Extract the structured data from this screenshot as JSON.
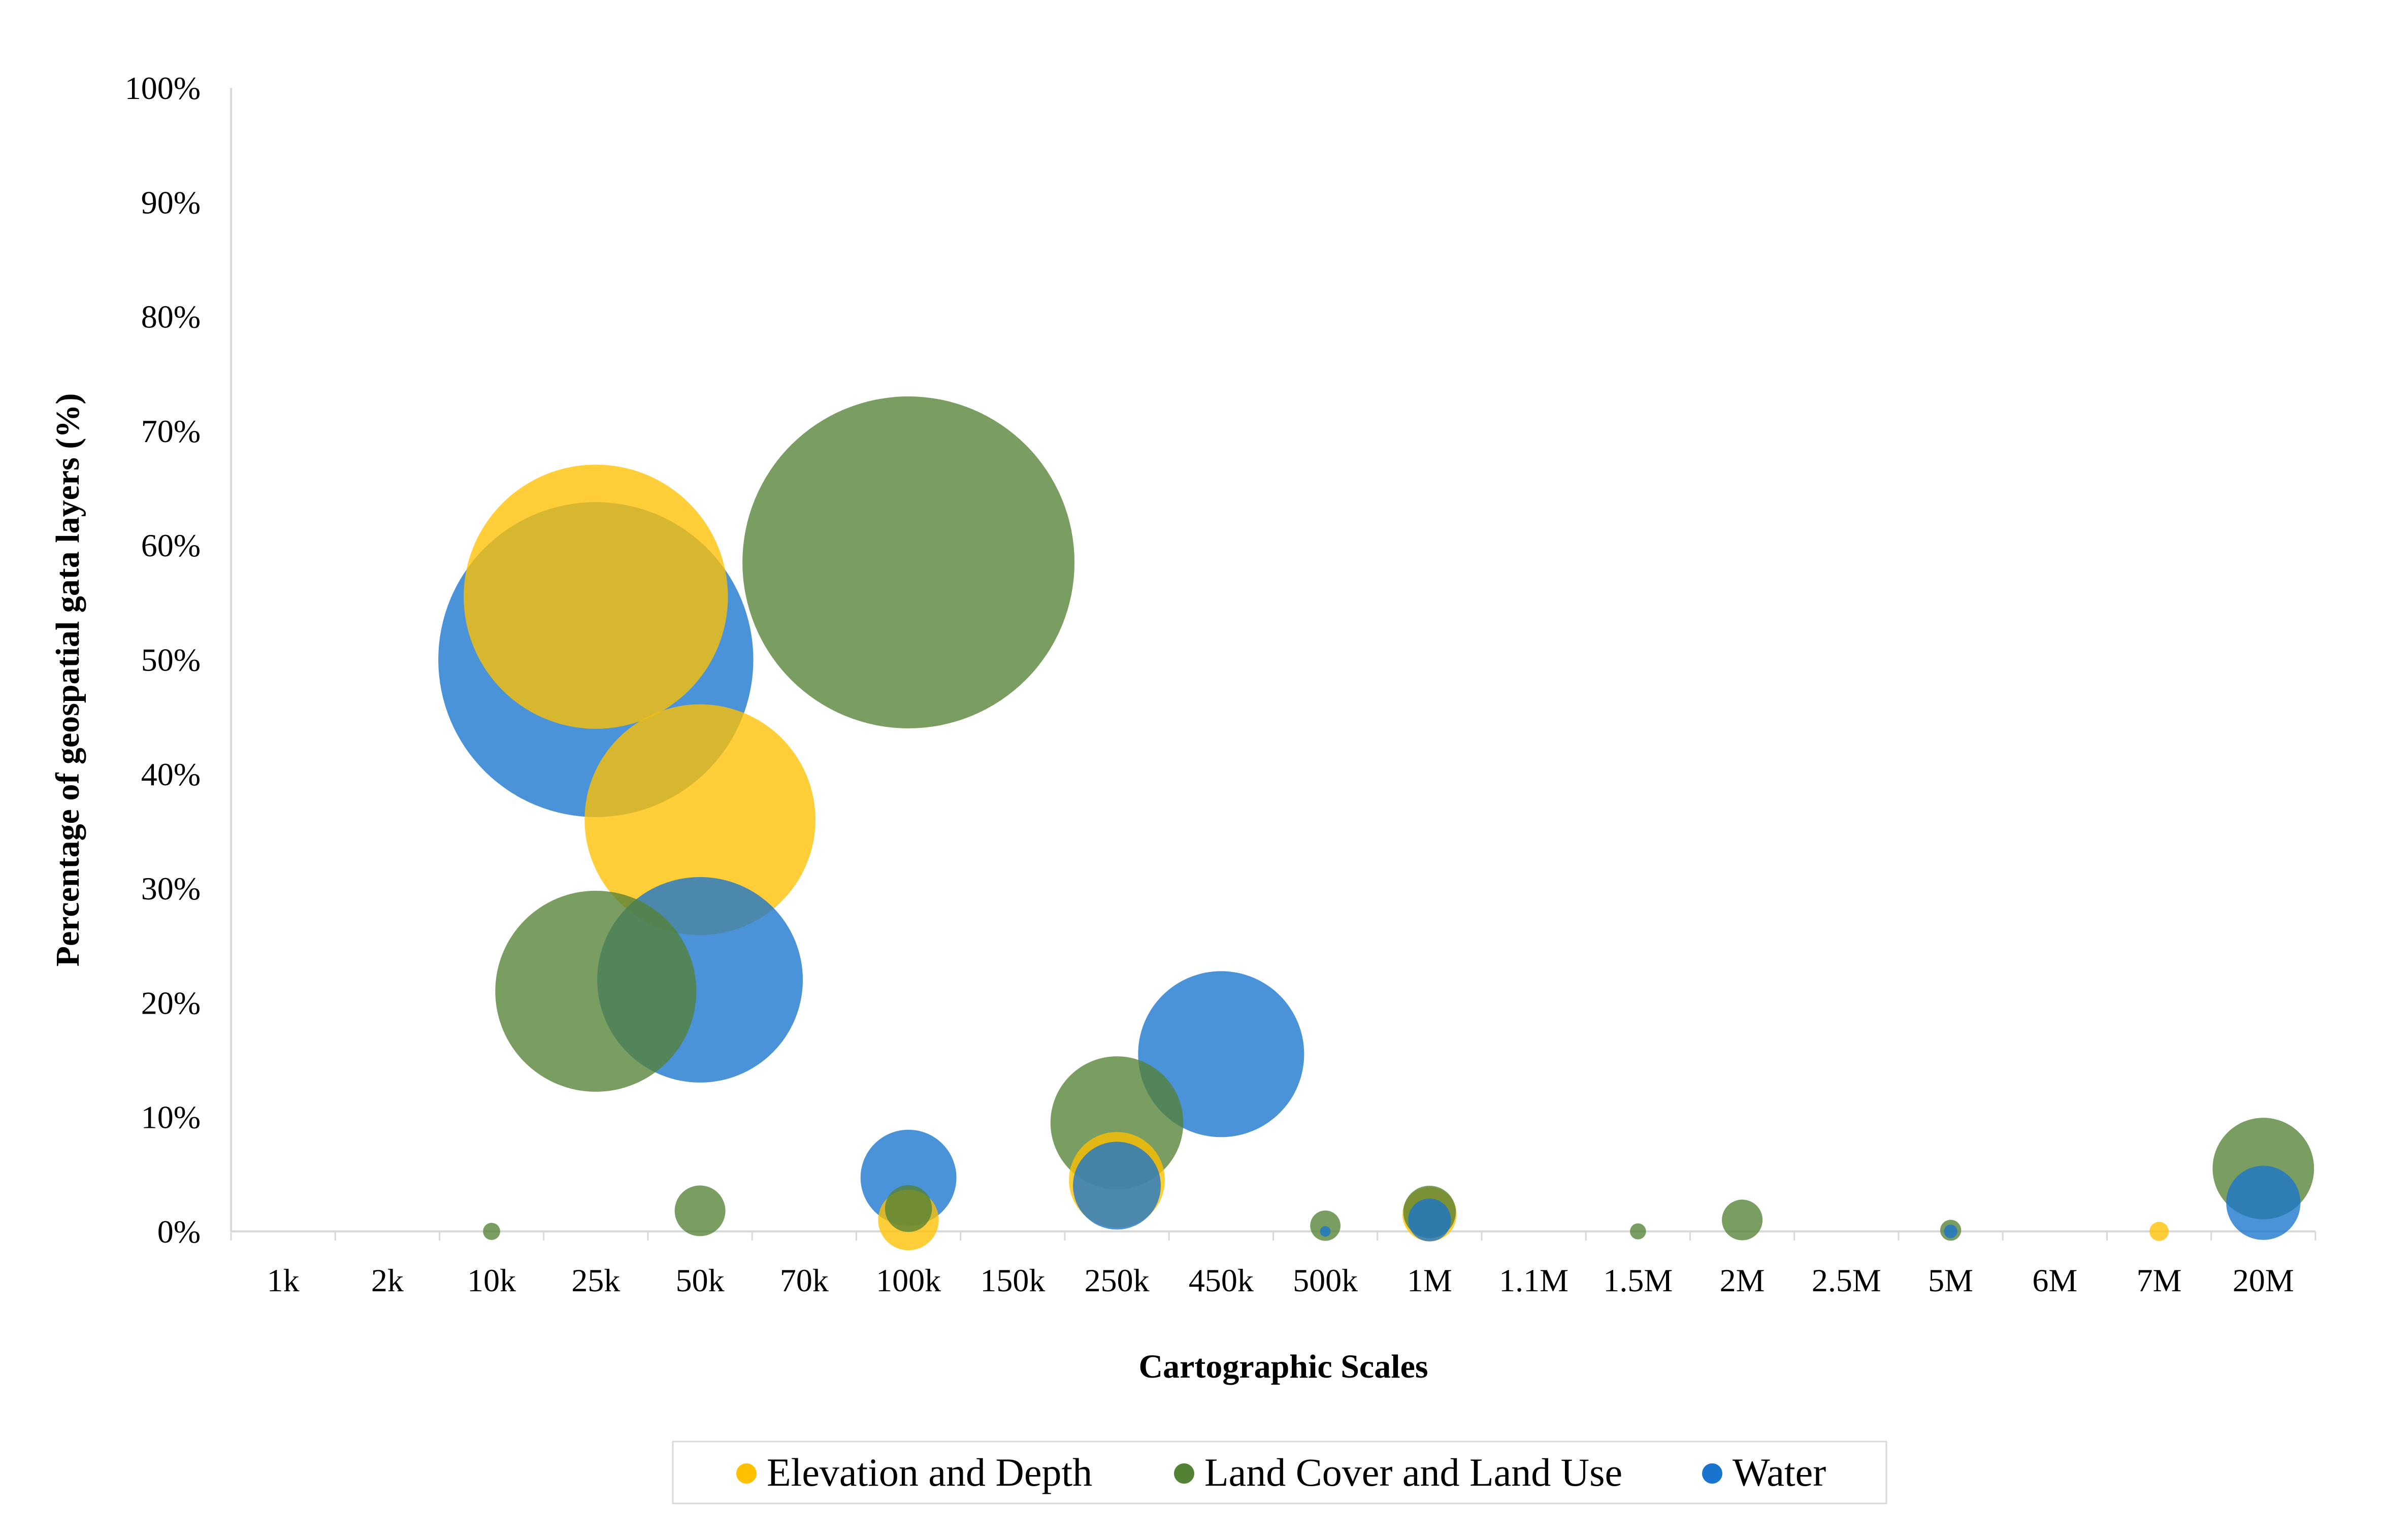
{
  "chart_data": {
    "type": "bubble",
    "title": "",
    "xlabel": "Cartographic Scales",
    "ylabel": "Percentage of geospatial gata layers (%)",
    "ylim": [
      0,
      100
    ],
    "yticks": [
      "0%",
      "10%",
      "20%",
      "30%",
      "40%",
      "50%",
      "60%",
      "70%",
      "80%",
      "90%",
      "100%"
    ],
    "categories": [
      "1k",
      "2k",
      "10k",
      "25k",
      "50k",
      "70k",
      "100k",
      "150k",
      "250k",
      "450k",
      "500k",
      "1M",
      "1.1M",
      "1.5M",
      "2M",
      "2.5M",
      "5M",
      "6M",
      "7M",
      "20M"
    ],
    "grid": false,
    "legend_position": "bottom",
    "bubble_size_note": "relative",
    "series": [
      {
        "name": "Elevation and Depth",
        "color": "#FFC000",
        "points": [
          {
            "x": "25k",
            "y": 55.5,
            "size": 19
          },
          {
            "x": "50k",
            "y": 36,
            "size": 14.5
          },
          {
            "x": "100k",
            "y": 1,
            "size": 1
          },
          {
            "x": "250k",
            "y": 4.5,
            "size": 2.5
          },
          {
            "x": "1M",
            "y": 1.5,
            "size": 0.8
          },
          {
            "x": "7M",
            "y": 0,
            "size": 0.1
          }
        ]
      },
      {
        "name": "Land Cover and Land Use",
        "color": "#548235",
        "points": [
          {
            "x": "10k",
            "y": 0,
            "size": 0.08
          },
          {
            "x": "25k",
            "y": 21,
            "size": 11
          },
          {
            "x": "50k",
            "y": 1.8,
            "size": 0.7
          },
          {
            "x": "100k",
            "y": 58.5,
            "size": 30
          },
          {
            "x": "100k",
            "y": 2,
            "size": 0.6
          },
          {
            "x": "250k",
            "y": 9.5,
            "size": 4.8
          },
          {
            "x": "500k",
            "y": 0.5,
            "size": 0.25
          },
          {
            "x": "1M",
            "y": 1.7,
            "size": 0.75
          },
          {
            "x": "1.5M",
            "y": 0,
            "size": 0.07
          },
          {
            "x": "2M",
            "y": 1,
            "size": 0.45
          },
          {
            "x": "5M",
            "y": 0.1,
            "size": 0.12
          },
          {
            "x": "20M",
            "y": 5.5,
            "size": 2.8
          }
        ]
      },
      {
        "name": "Water",
        "color": "#1874CD",
        "points": [
          {
            "x": "25k",
            "y": 50,
            "size": 27
          },
          {
            "x": "50k",
            "y": 22,
            "size": 11.5
          },
          {
            "x": "100k",
            "y": 4.7,
            "size": 2.5
          },
          {
            "x": "250k",
            "y": 4,
            "size": 2.1
          },
          {
            "x": "450k",
            "y": 15.5,
            "size": 7.5
          },
          {
            "x": "500k",
            "y": 0,
            "size": 0.03
          },
          {
            "x": "1M",
            "y": 1,
            "size": 0.5
          },
          {
            "x": "5M",
            "y": 0,
            "size": 0.05
          },
          {
            "x": "20M",
            "y": 2.5,
            "size": 1.5
          }
        ]
      }
    ]
  }
}
